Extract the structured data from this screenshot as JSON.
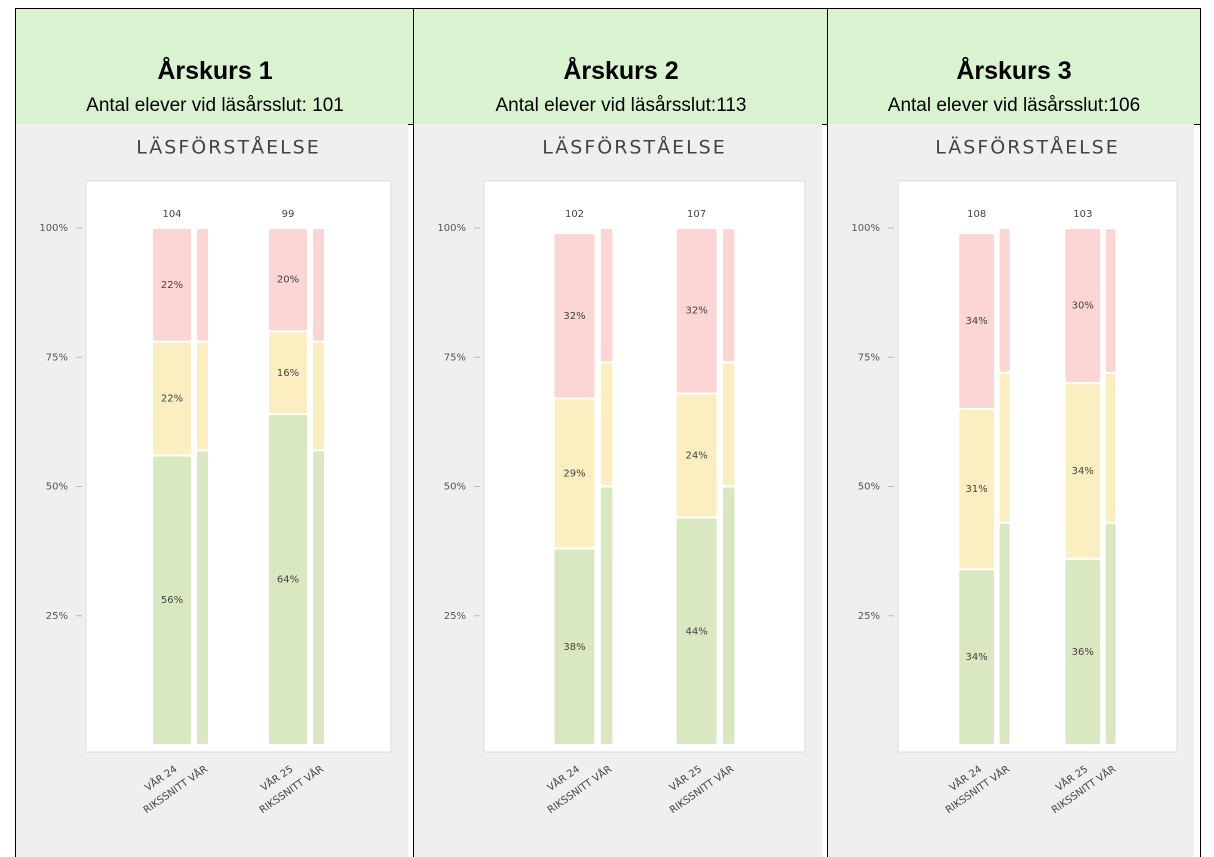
{
  "headers": [
    {
      "title": "Årskurs 1",
      "subtitle": "Antal elever vid läsårsslut: 101"
    },
    {
      "title": "Årskurs 2",
      "subtitle": "Antal elever vid läsårsslut:113"
    },
    {
      "title": "Årskurs 3",
      "subtitle": "Antal elever vid läsårsslut:106"
    }
  ],
  "chart_data": [
    {
      "type": "stacked_bar",
      "title": "LÄSFÖRSTÅELSE",
      "categories": [
        "VÅR 24",
        "RIKSSNITT VÅR",
        "VÅR 25",
        "RIKSSNITT VÅR"
      ],
      "counts": [
        104,
        null,
        99,
        null
      ],
      "ylim": [
        0,
        100
      ],
      "yticks": [
        {
          "value": 25,
          "label": "25%"
        },
        {
          "value": 50,
          "label": "50%"
        },
        {
          "value": 75,
          "label": "75%"
        },
        {
          "value": 100,
          "label": "100%"
        }
      ],
      "series": [
        {
          "color": "#d9e8c0",
          "values": [
            56,
            57,
            64,
            57
          ],
          "value_labels": [
            "56%",
            null,
            "64%",
            null
          ]
        },
        {
          "color": "#fbefc2",
          "values": [
            22,
            21,
            16,
            21
          ],
          "value_labels": [
            "22%",
            null,
            "16%",
            null
          ]
        },
        {
          "color": "#fcd5d5",
          "values": [
            22,
            22,
            20,
            22
          ],
          "value_labels": [
            "22%",
            null,
            "20%",
            null
          ]
        }
      ]
    },
    {
      "type": "stacked_bar",
      "title": "LÄSFÖRSTÅELSE",
      "categories": [
        "VÅR 24",
        "RIKSSNITT VÅR",
        "VÅR 25",
        "RIKSSNITT VÅR"
      ],
      "counts": [
        102,
        null,
        107,
        null
      ],
      "ylim": [
        0,
        100
      ],
      "yticks": [
        {
          "value": 25,
          "label": "25%"
        },
        {
          "value": 50,
          "label": "50%"
        },
        {
          "value": 75,
          "label": "75%"
        },
        {
          "value": 100,
          "label": "100%"
        }
      ],
      "series": [
        {
          "color": "#d9e8c0",
          "values": [
            38,
            50,
            44,
            50
          ],
          "value_labels": [
            "38%",
            null,
            "44%",
            null
          ]
        },
        {
          "color": "#fbefc2",
          "values": [
            29,
            24,
            24,
            24
          ],
          "value_labels": [
            "29%",
            null,
            "24%",
            null
          ]
        },
        {
          "color": "#fcd5d5",
          "values": [
            32,
            26,
            32,
            26
          ],
          "value_labels": [
            "32%",
            null,
            "32%",
            null
          ]
        }
      ]
    },
    {
      "type": "stacked_bar",
      "title": "LÄSFÖRSTÅELSE",
      "categories": [
        "VÅR 24",
        "RIKSSNITT VÅR",
        "VÅR 25",
        "RIKSSNITT VÅR"
      ],
      "counts": [
        108,
        null,
        103,
        null
      ],
      "ylim": [
        0,
        100
      ],
      "yticks": [
        {
          "value": 25,
          "label": "25%"
        },
        {
          "value": 50,
          "label": "50%"
        },
        {
          "value": 75,
          "label": "75%"
        },
        {
          "value": 100,
          "label": "100%"
        }
      ],
      "series": [
        {
          "color": "#d9e8c0",
          "values": [
            34,
            43,
            36,
            43
          ],
          "value_labels": [
            "34%",
            null,
            "36%",
            null
          ]
        },
        {
          "color": "#fbefc2",
          "values": [
            31,
            29,
            34,
            29
          ],
          "value_labels": [
            "31%",
            null,
            "34%",
            null
          ]
        },
        {
          "color": "#fcd5d5",
          "values": [
            34,
            28,
            30,
            28
          ],
          "value_labels": [
            "34%",
            null,
            "30%",
            null
          ]
        }
      ]
    }
  ]
}
